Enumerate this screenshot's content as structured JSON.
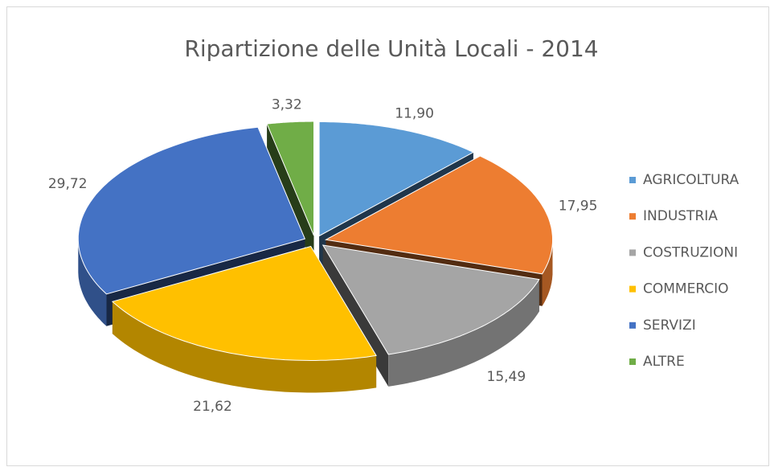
{
  "chart_data": {
    "type": "pie",
    "title": "Ripartizione delle Unità Locali - 2014",
    "categories": [
      "AGRICOLTURA",
      "INDUSTRIA",
      "COSTRUZIONI",
      "COMMERCIO",
      "SERVIZI",
      "ALTRE"
    ],
    "values": [
      11.9,
      17.95,
      15.49,
      21.62,
      29.72,
      3.32
    ],
    "value_labels": [
      "11,90",
      "17,95",
      "15,49",
      "21,62",
      "29,72",
      "3,32"
    ],
    "colors": [
      "#5b9bd5",
      "#ed7d31",
      "#a5a5a5",
      "#ffc000",
      "#4472c4",
      "#70ad47"
    ],
    "legend": "right"
  }
}
